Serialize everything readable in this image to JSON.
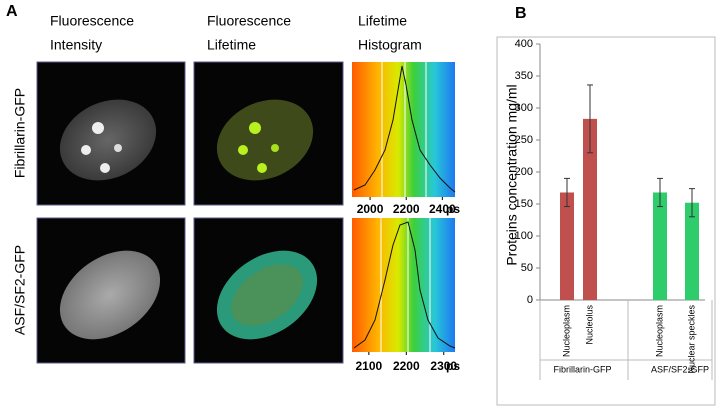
{
  "panel_a": {
    "label": "A",
    "columns": [
      [
        "Fluorescence",
        "Intensity"
      ],
      [
        "Fluorescence",
        "Lifetime"
      ],
      [
        "Lifetime",
        "Histogram"
      ]
    ],
    "rows": [
      "Fibrillarin-GFP",
      "ASF/SF2-GFP"
    ],
    "histograms": [
      {
        "xlim": [
          1900,
          2470
        ],
        "xticks": [
          2000,
          2200,
          2400
        ],
        "unit": "ps"
      },
      {
        "xlim": [
          2055,
          2330
        ],
        "xticks": [
          2100,
          2200,
          2300
        ],
        "unit": "ps"
      }
    ]
  },
  "chart_data": {
    "type": "bar",
    "label": "B",
    "ylabel": "Proteins concentration mg/ml",
    "ylim": [
      0,
      400
    ],
    "yticks": [
      0,
      50,
      100,
      150,
      200,
      250,
      300,
      350,
      400
    ],
    "groups": [
      {
        "name": "Fibrillarin-GFP",
        "color": "#c0504d",
        "categories": [
          "Nucleoplasm",
          "Nucleolus"
        ],
        "values": [
          168,
          283
        ],
        "errors": [
          22,
          53
        ]
      },
      {
        "name": "ASF/SF2-GFP",
        "color": "#2ecc6a",
        "categories": [
          "Nucleoplasm",
          "Nuclear speckles"
        ],
        "values": [
          168,
          152
        ],
        "errors": [
          22,
          22
        ]
      }
    ]
  }
}
